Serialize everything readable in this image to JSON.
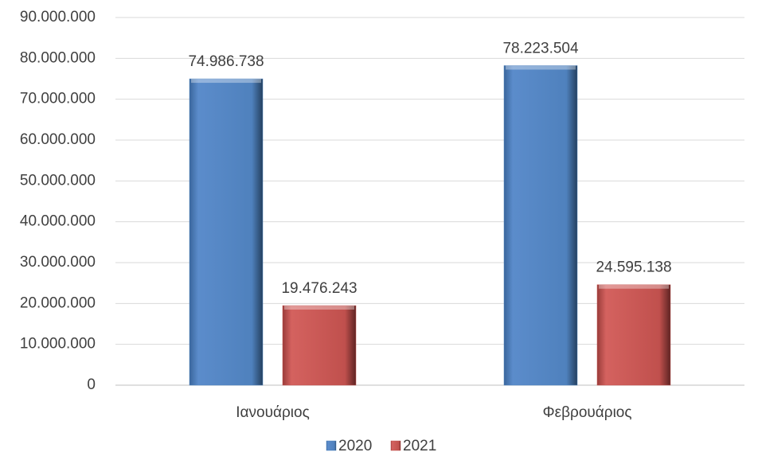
{
  "chart_data": {
    "type": "bar",
    "categories": [
      "Ιανουάριος",
      "Φεβρουάριος"
    ],
    "series": [
      {
        "name": "2020",
        "values": [
          74986738,
          78223504
        ],
        "labels": [
          "74.986.738",
          "78.223.504"
        ],
        "color": "#4f81bd"
      },
      {
        "name": "2021",
        "values": [
          19476243,
          24595138
        ],
        "labels": [
          "19.476.243",
          "24.595.138"
        ],
        "color": "#c0504d"
      }
    ],
    "ylim": [
      0,
      90000000
    ],
    "y_ticks": [
      "0",
      "10.000.000",
      "20.000.000",
      "30.000.000",
      "40.000.000",
      "50.000.000",
      "60.000.000",
      "70.000.000",
      "80.000.000",
      "90.000.000"
    ],
    "grid": true,
    "legend": "bottom"
  }
}
